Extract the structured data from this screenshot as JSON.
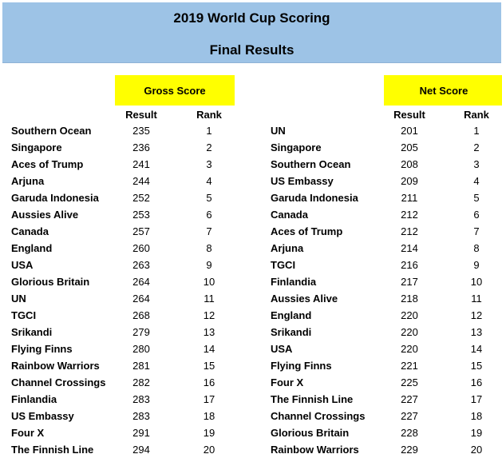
{
  "header": {
    "title": "2019 World Cup Scoring",
    "subtitle": "Final Results"
  },
  "gross": {
    "heading": "Gross Score",
    "result_label": "Result",
    "rank_label": "Rank",
    "rows": [
      {
        "name": "Southern Ocean",
        "result": "235",
        "rank": "1"
      },
      {
        "name": "Singapore",
        "result": "236",
        "rank": "2"
      },
      {
        "name": "Aces of Trump",
        "result": "241",
        "rank": "3"
      },
      {
        "name": "Arjuna",
        "result": "244",
        "rank": "4"
      },
      {
        "name": "Garuda Indonesia",
        "result": "252",
        "rank": "5"
      },
      {
        "name": "Aussies Alive",
        "result": "253",
        "rank": "6"
      },
      {
        "name": "Canada",
        "result": "257",
        "rank": "7"
      },
      {
        "name": "England",
        "result": "260",
        "rank": "8"
      },
      {
        "name": "USA",
        "result": "263",
        "rank": "9"
      },
      {
        "name": "Glorious Britain",
        "result": "264",
        "rank": "10"
      },
      {
        "name": "UN",
        "result": "264",
        "rank": "11"
      },
      {
        "name": "TGCI",
        "result": "268",
        "rank": "12"
      },
      {
        "name": "Srikandi",
        "result": "279",
        "rank": "13"
      },
      {
        "name": "Flying Finns",
        "result": "280",
        "rank": "14"
      },
      {
        "name": "Rainbow Warriors",
        "result": "281",
        "rank": "15"
      },
      {
        "name": "Channel Crossings",
        "result": "282",
        "rank": "16"
      },
      {
        "name": "Finlandia",
        "result": "283",
        "rank": "17"
      },
      {
        "name": "US Embassy",
        "result": "283",
        "rank": "18"
      },
      {
        "name": "Four X",
        "result": "291",
        "rank": "19"
      },
      {
        "name": "The Finnish Line",
        "result": "294",
        "rank": "20"
      }
    ]
  },
  "net": {
    "heading": "Net Score",
    "result_label": "Result",
    "rank_label": "Rank",
    "rows": [
      {
        "name": "UN",
        "result": "201",
        "rank": "1"
      },
      {
        "name": "Singapore",
        "result": "205",
        "rank": "2"
      },
      {
        "name": "Southern Ocean",
        "result": "208",
        "rank": "3"
      },
      {
        "name": "US Embassy",
        "result": "209",
        "rank": "4"
      },
      {
        "name": "Garuda Indonesia",
        "result": "211",
        "rank": "5"
      },
      {
        "name": "Canada",
        "result": "212",
        "rank": "6"
      },
      {
        "name": "Aces of Trump",
        "result": "212",
        "rank": "7"
      },
      {
        "name": "Arjuna",
        "result": "214",
        "rank": "8"
      },
      {
        "name": "TGCI",
        "result": "216",
        "rank": "9"
      },
      {
        "name": "Finlandia",
        "result": "217",
        "rank": "10"
      },
      {
        "name": "Aussies Alive",
        "result": "218",
        "rank": "11"
      },
      {
        "name": "England",
        "result": "220",
        "rank": "12"
      },
      {
        "name": "Srikandi",
        "result": "220",
        "rank": "13"
      },
      {
        "name": "USA",
        "result": "220",
        "rank": "14"
      },
      {
        "name": "Flying Finns",
        "result": "221",
        "rank": "15"
      },
      {
        "name": "Four X",
        "result": "225",
        "rank": "16"
      },
      {
        "name": "The Finnish Line",
        "result": "227",
        "rank": "17"
      },
      {
        "name": "Channel Crossings",
        "result": "227",
        "rank": "18"
      },
      {
        "name": "Glorious Britain",
        "result": "228",
        "rank": "19"
      },
      {
        "name": "Rainbow Warriors",
        "result": "229",
        "rank": "20"
      }
    ]
  },
  "colors": {
    "banner": "#9dc3e6",
    "highlight": "#ffff00"
  }
}
